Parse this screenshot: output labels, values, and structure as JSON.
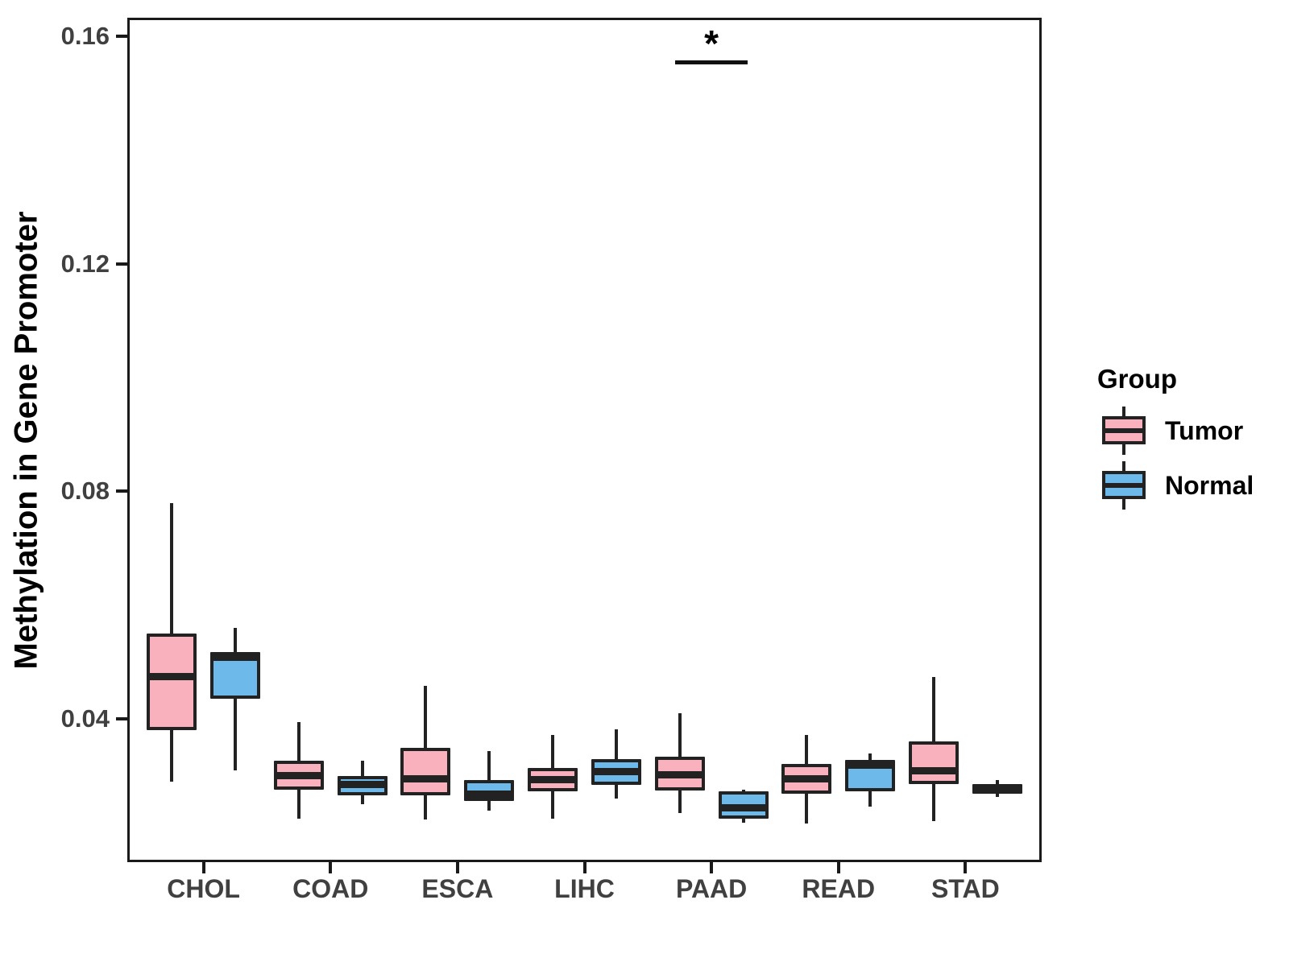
{
  "figure": {
    "background": "#FFFFFF",
    "description": "Grouped boxplot of methylation in gene promoter, Tumor vs Normal across cancer types"
  },
  "style": {
    "box_border_color": "#222222",
    "axis_color": "#1A1A1A",
    "tick_label_color": "#404040",
    "title_color": "#000000",
    "tumor_fill": "#F9B1BE",
    "normal_fill": "#6DB9EA"
  },
  "chart_data": {
    "type": "boxplot",
    "title": "",
    "xlabel": "",
    "ylabel": "Methylation in Gene Promoter",
    "categories": [
      "CHOL",
      "COAD",
      "ESCA",
      "LIHC",
      "PAAD",
      "READ",
      "STAD"
    ],
    "ylim": [
      0.0148,
      0.1633
    ],
    "y_ticks": [
      {
        "value": 0.04,
        "label": "0.04"
      },
      {
        "value": 0.08,
        "label": "0.08"
      },
      {
        "value": 0.12,
        "label": "0.12"
      },
      {
        "value": 0.16,
        "label": "0.16"
      }
    ],
    "grid": false,
    "legend": {
      "title": "Group",
      "position": "right",
      "entries": [
        {
          "label": "Tumor",
          "color": "#F9B1BE"
        },
        {
          "label": "Normal",
          "color": "#6DB9EA"
        }
      ]
    },
    "series": [
      {
        "name": "Tumor",
        "color": "#F9B1BE",
        "boxes": [
          {
            "category": "CHOL",
            "whisker_low": 0.029,
            "q1": 0.038,
            "median": 0.0475,
            "q3": 0.055,
            "whisker_high": 0.078
          },
          {
            "category": "COAD",
            "whisker_low": 0.0225,
            "q1": 0.0276,
            "median": 0.03,
            "q3": 0.0326,
            "whisker_high": 0.0395
          },
          {
            "category": "ESCA",
            "whisker_low": 0.0223,
            "q1": 0.0266,
            "median": 0.0295,
            "q3": 0.0349,
            "whisker_high": 0.0458
          },
          {
            "category": "LIHC",
            "whisker_low": 0.0225,
            "q1": 0.0273,
            "median": 0.0293,
            "q3": 0.0314,
            "whisker_high": 0.0372
          },
          {
            "category": "PAAD",
            "whisker_low": 0.0235,
            "q1": 0.0274,
            "median": 0.0302,
            "q3": 0.0334,
            "whisker_high": 0.041
          },
          {
            "category": "READ",
            "whisker_low": 0.0216,
            "q1": 0.0268,
            "median": 0.0294,
            "q3": 0.0321,
            "whisker_high": 0.0372
          },
          {
            "category": "STAD",
            "whisker_low": 0.022,
            "q1": 0.0285,
            "median": 0.0308,
            "q3": 0.036,
            "whisker_high": 0.0473
          }
        ]
      },
      {
        "name": "Normal",
        "color": "#6DB9EA",
        "boxes": [
          {
            "category": "CHOL",
            "whisker_low": 0.031,
            "q1": 0.0435,
            "median": 0.0508,
            "q3": 0.0518,
            "whisker_high": 0.056
          },
          {
            "category": "COAD",
            "whisker_low": 0.025,
            "q1": 0.0266,
            "median": 0.0284,
            "q3": 0.03,
            "whisker_high": 0.0326
          },
          {
            "category": "ESCA",
            "whisker_low": 0.0239,
            "q1": 0.0256,
            "median": 0.0268,
            "q3": 0.0292,
            "whisker_high": 0.0344
          },
          {
            "category": "LIHC",
            "whisker_low": 0.026,
            "q1": 0.0284,
            "median": 0.0307,
            "q3": 0.0329,
            "whisker_high": 0.0382
          },
          {
            "category": "PAAD",
            "whisker_low": 0.0218,
            "q1": 0.0225,
            "median": 0.0243,
            "q3": 0.0273,
            "whisker_high": 0.0275
          },
          {
            "category": "READ",
            "whisker_low": 0.0246,
            "q1": 0.0273,
            "median": 0.0318,
            "q3": 0.0328,
            "whisker_high": 0.0339
          },
          {
            "category": "STAD",
            "whisker_low": 0.0262,
            "q1": 0.0268,
            "median": 0.0276,
            "q3": 0.0286,
            "whisker_high": 0.0292
          }
        ]
      }
    ],
    "annotations": [
      {
        "label": "*",
        "category": "PAAD",
        "y": 0.1558
      }
    ]
  }
}
